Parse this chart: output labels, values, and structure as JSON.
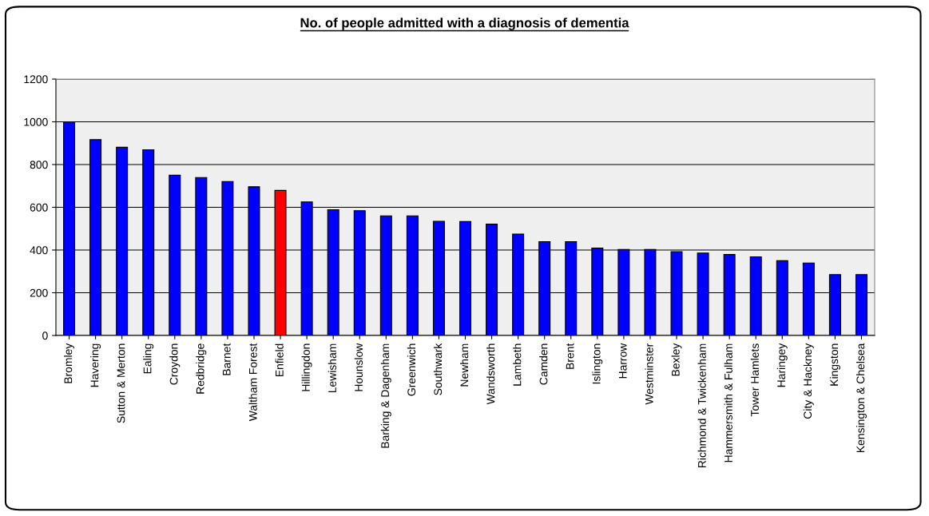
{
  "chart_data": {
    "type": "bar",
    "title": "No. of people admitted with a diagnosis of dementia",
    "categories": [
      "Bromley",
      "Havering",
      "Sutton & Merton",
      "Ealing",
      "Croydon",
      "Redbridge",
      "Barnet",
      "Waltham Forest",
      "Enfield",
      "Hillingdon",
      "Lewisham",
      "Hounslow",
      "Barking & Dagenham",
      "Greenwich",
      "Southwark",
      "Newham",
      "Wandsworth",
      "Lambeth",
      "Camden",
      "Brent",
      "Islington",
      "Harrow",
      "Westminster",
      "Bexley",
      "Richmond & Twickenham",
      "Hammersmith & Fulham",
      "Tower Hamlets",
      "Haringey",
      "City & Hackney",
      "Kingston",
      "Kensington & Chelsea"
    ],
    "values": [
      1000,
      917,
      881,
      869,
      750,
      739,
      720,
      696,
      679,
      625,
      589,
      584,
      560,
      560,
      534,
      533,
      521,
      475,
      439,
      439,
      409,
      403,
      403,
      392,
      386,
      379,
      368,
      350,
      339,
      285,
      285
    ],
    "colors": [
      "#0000ff",
      "#0000ff",
      "#0000ff",
      "#0000ff",
      "#0000ff",
      "#0000ff",
      "#0000ff",
      "#0000ff",
      "#ff0000",
      "#0000ff",
      "#0000ff",
      "#0000ff",
      "#0000ff",
      "#0000ff",
      "#0000ff",
      "#0000ff",
      "#0000ff",
      "#0000ff",
      "#0000ff",
      "#0000ff",
      "#0000ff",
      "#0000ff",
      "#0000ff",
      "#0000ff",
      "#0000ff",
      "#0000ff",
      "#0000ff",
      "#0000ff",
      "#0000ff",
      "#0000ff",
      "#0000ff"
    ],
    "ylim": [
      0,
      1200
    ],
    "yticks": [
      0,
      200,
      400,
      600,
      800,
      1000,
      1200
    ],
    "grid": "y"
  }
}
